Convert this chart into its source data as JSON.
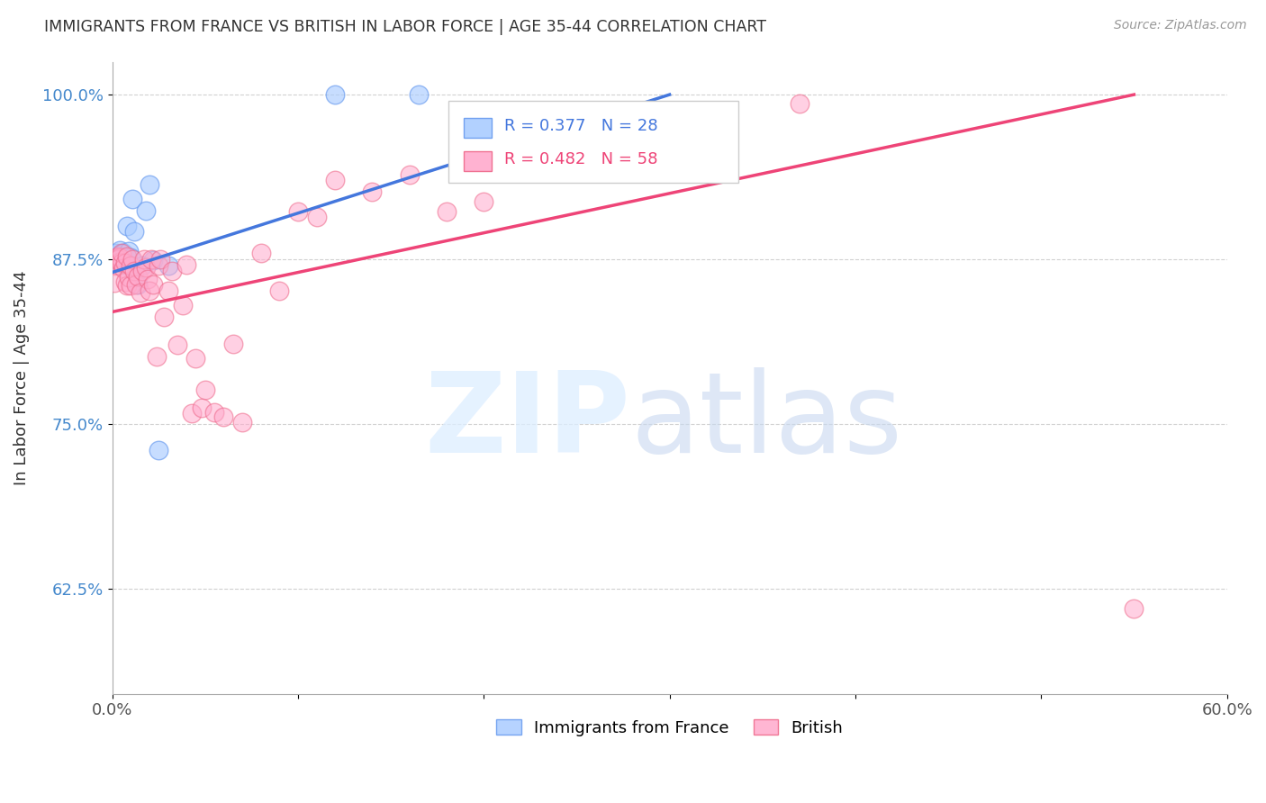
{
  "title": "IMMIGRANTS FROM FRANCE VS BRITISH IN LABOR FORCE | AGE 35-44 CORRELATION CHART",
  "source": "Source: ZipAtlas.com",
  "ylabel": "In Labor Force | Age 35-44",
  "x_min": 0.0,
  "x_max": 0.6,
  "y_min": 0.545,
  "y_max": 1.025,
  "x_ticks": [
    0.0,
    0.1,
    0.2,
    0.3,
    0.4,
    0.5,
    0.6
  ],
  "x_tick_labels": [
    "0.0%",
    "",
    "",
    "",
    "",
    "",
    "60.0%"
  ],
  "y_ticks": [
    0.625,
    0.75,
    0.875,
    1.0
  ],
  "y_tick_labels": [
    "62.5%",
    "75.0%",
    "87.5%",
    "100.0%"
  ],
  "france_color": "#aaccff",
  "british_color": "#ffaacc",
  "france_edge_color": "#6699ee",
  "british_edge_color": "#ee6688",
  "france_line_color": "#4477dd",
  "british_line_color": "#ee4477",
  "france_R": 0.377,
  "france_N": 28,
  "british_R": 0.482,
  "british_N": 58,
  "legend_france": "Immigrants from France",
  "legend_british": "British",
  "france_x": [
    0.001,
    0.001,
    0.002,
    0.002,
    0.003,
    0.003,
    0.004,
    0.004,
    0.005,
    0.005,
    0.006,
    0.006,
    0.007,
    0.008,
    0.008,
    0.009,
    0.01,
    0.011,
    0.012,
    0.014,
    0.016,
    0.018,
    0.02,
    0.022,
    0.025,
    0.03,
    0.12,
    0.165
  ],
  "france_y": [
    0.878,
    0.875,
    0.88,
    0.877,
    0.876,
    0.873,
    0.882,
    0.877,
    0.877,
    0.879,
    0.876,
    0.88,
    0.877,
    0.87,
    0.9,
    0.881,
    0.876,
    0.921,
    0.896,
    0.856,
    0.87,
    0.912,
    0.932,
    0.874,
    0.73,
    0.87,
    1.0,
    1.0
  ],
  "british_x": [
    0.001,
    0.001,
    0.002,
    0.003,
    0.003,
    0.004,
    0.004,
    0.005,
    0.005,
    0.006,
    0.007,
    0.007,
    0.008,
    0.008,
    0.009,
    0.01,
    0.01,
    0.011,
    0.012,
    0.013,
    0.014,
    0.015,
    0.016,
    0.017,
    0.018,
    0.019,
    0.02,
    0.021,
    0.022,
    0.024,
    0.025,
    0.026,
    0.028,
    0.03,
    0.032,
    0.035,
    0.038,
    0.04,
    0.043,
    0.045,
    0.048,
    0.05,
    0.055,
    0.06,
    0.065,
    0.07,
    0.08,
    0.09,
    0.1,
    0.11,
    0.12,
    0.14,
    0.16,
    0.18,
    0.2,
    0.24,
    0.37,
    0.55
  ],
  "british_y": [
    0.87,
    0.857,
    0.876,
    0.877,
    0.875,
    0.873,
    0.876,
    0.872,
    0.88,
    0.868,
    0.872,
    0.858,
    0.855,
    0.877,
    0.861,
    0.855,
    0.87,
    0.875,
    0.866,
    0.856,
    0.862,
    0.85,
    0.866,
    0.875,
    0.869,
    0.86,
    0.851,
    0.875,
    0.856,
    0.801,
    0.87,
    0.875,
    0.831,
    0.851,
    0.866,
    0.81,
    0.84,
    0.871,
    0.758,
    0.8,
    0.762,
    0.776,
    0.759,
    0.755,
    0.811,
    0.751,
    0.88,
    0.851,
    0.911,
    0.907,
    0.935,
    0.926,
    0.939,
    0.911,
    0.919,
    0.951,
    0.993,
    0.61
  ]
}
